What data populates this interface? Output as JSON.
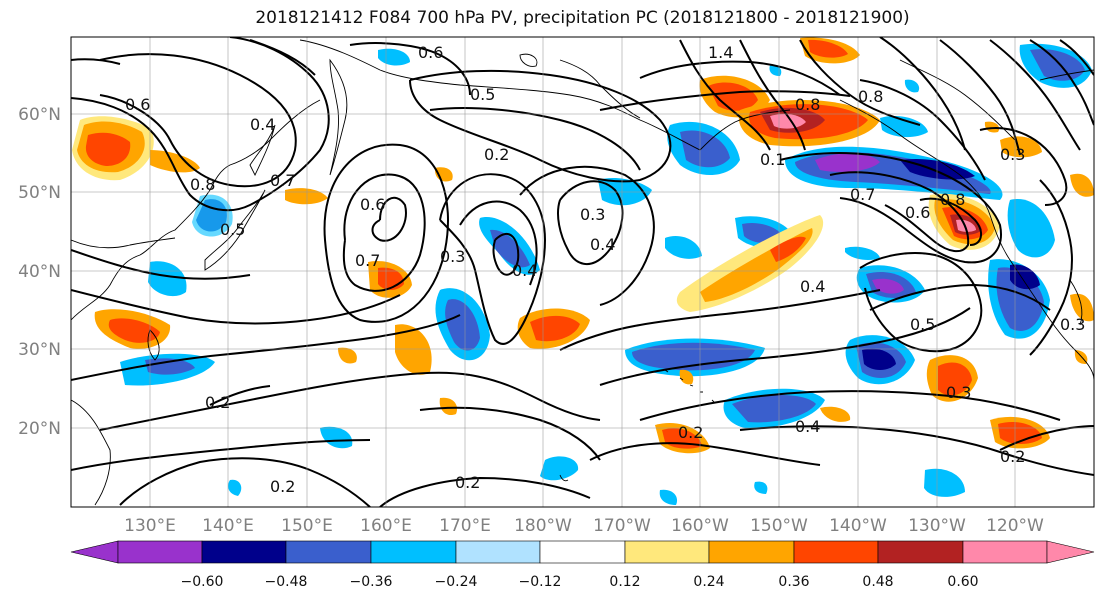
{
  "title": "2018121412 F084 700 hPa PV, precipitation PC (2018121800 - 2018121900)",
  "axes": {
    "lat_labels": [
      "60°N",
      "50°N",
      "40°N",
      "30°N",
      "20°N"
    ],
    "lon_labels": [
      "130°E",
      "140°E",
      "150°E",
      "160°E",
      "170°E",
      "180°W",
      "170°W",
      "160°W",
      "150°W",
      "140°W",
      "130°W",
      "120°W"
    ]
  },
  "colorbar": {
    "ticks": [
      "−0.60",
      "−0.48",
      "−0.36",
      "−0.24",
      "−0.12",
      "0.12",
      "0.24",
      "0.36",
      "0.48",
      "0.60"
    ],
    "colors": {
      "lt_m060": "#9932cc",
      "m060_m048": "#00008b",
      "m048_m036": "#3a5fcd",
      "m036_m024": "#00bfff",
      "m024_m012": "#b0e2ff",
      "m012_012": "#ffffff",
      "p012_024": "#ffe87c",
      "p024_036": "#ffa500",
      "p036_048": "#ff4500",
      "p048_060": "#b22222",
      "gt_060": "#ff88aa"
    }
  },
  "contour_labels": [
    "0.6",
    "1.4",
    "0.2",
    "0.5",
    "0.4",
    "0.8",
    "0.7",
    "0.6",
    "0.8",
    "0.7",
    "0.5",
    "0.6",
    "0.7",
    "0.3",
    "0.3",
    "0.4",
    "0.2",
    "0.4",
    "0.5",
    "0.3",
    "0.2",
    "0.2",
    "0.4",
    "0.2",
    "0.3",
    "0.8",
    "0.1",
    "0.3",
    "0.4",
    "0.2",
    "0.8",
    "0.6"
  ]
}
